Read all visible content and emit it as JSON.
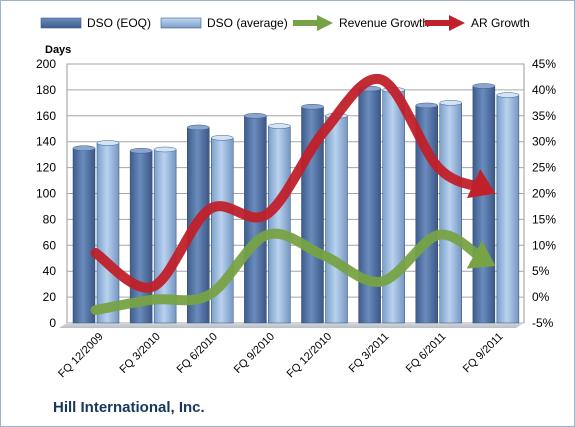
{
  "footer": {
    "company": "Hill International, Inc."
  },
  "chart_data": {
    "type": "bar",
    "title": "",
    "categories": [
      "FQ 12/2009",
      "FQ 3/2010",
      "FQ 6/2010",
      "FQ 9/2010",
      "FQ 12/2010",
      "FQ 3/2011",
      "FQ 6/2011",
      "FQ 9/2011"
    ],
    "left_axis": {
      "label": "Days",
      "min": 0,
      "max": 200,
      "step": 20
    },
    "right_axis": {
      "min": -5,
      "max": 45,
      "step": 5,
      "unit": "%"
    },
    "series": [
      {
        "name": "DSO (EOQ)",
        "type": "bar",
        "axis": "left",
        "color": "#4f6fa0",
        "values": [
          135,
          133,
          151,
          160,
          167,
          181,
          168,
          183
        ]
      },
      {
        "name": "DSO (average)",
        "type": "bar",
        "axis": "left",
        "color": "#8fb2d9",
        "values": [
          139,
          134,
          143,
          152,
          160,
          180,
          170,
          176
        ]
      },
      {
        "name": "Revenue Growth",
        "type": "line",
        "axis": "right",
        "color": "#77a245",
        "values": [
          -2.5,
          -0.5,
          0.5,
          12,
          8,
          3,
          12,
          6
        ]
      },
      {
        "name": "AR Growth",
        "type": "line",
        "axis": "right",
        "color": "#c0202a",
        "values": [
          8.5,
          2,
          17,
          16,
          32,
          42,
          25,
          20
        ]
      }
    ],
    "legend_position": "top",
    "grid": true
  }
}
